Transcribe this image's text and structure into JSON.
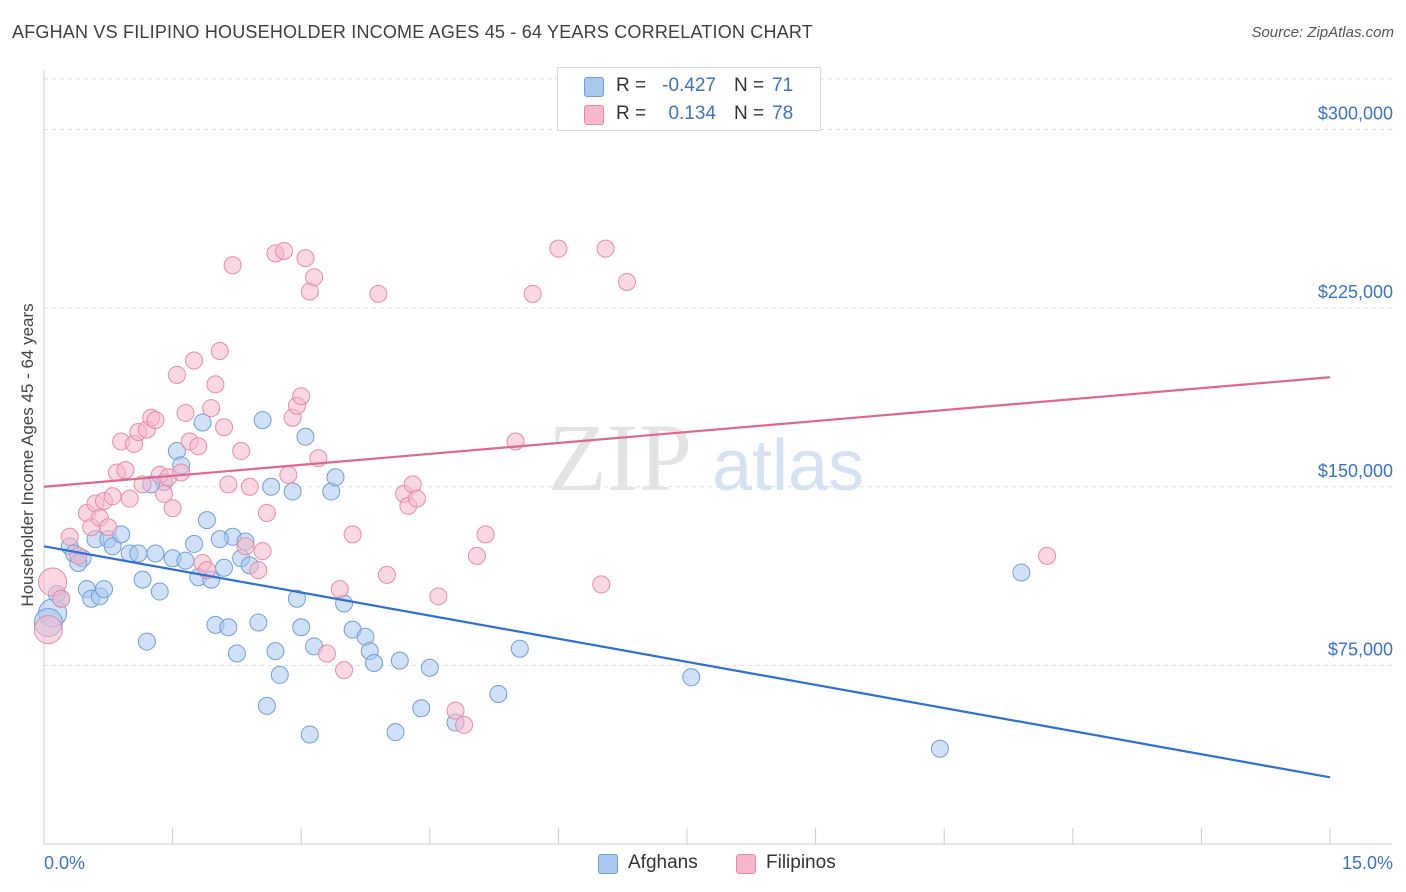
{
  "title": "AFGHAN VS FILIPINO HOUSEHOLDER INCOME AGES 45 - 64 YEARS CORRELATION CHART",
  "source": "Source: ZipAtlas.com",
  "watermark": {
    "zip": "ZIP",
    "atlas": "atlas"
  },
  "legend": {
    "rows": [
      {
        "r_label": "R =",
        "r_value": "-0.427",
        "n_label": "N =",
        "n_value": "71",
        "color": "#a9c8f0"
      },
      {
        "r_label": "R =",
        "r_value": "0.134",
        "n_label": "N =",
        "n_value": "78",
        "color": "#f6b8ca"
      }
    ]
  },
  "bottom_legend": [
    {
      "label": "Afghans",
      "color": "#a9c8f0"
    },
    {
      "label": "Filipinos",
      "color": "#f6b8ca"
    }
  ],
  "chart_data": {
    "type": "scatter",
    "title": "AFGHAN VS FILIPINO HOUSEHOLDER INCOME AGES 45 - 64 YEARS CORRELATION CHART",
    "xlabel": "",
    "ylabel": "Householder Income Ages 45 - 64 years",
    "xlim": [
      0,
      15
    ],
    "ylim": [
      0,
      325000
    ],
    "x_tick_labels": [
      "0.0%",
      "15.0%"
    ],
    "y_ticks": [
      75000,
      150000,
      225000,
      300000
    ],
    "y_tick_labels": [
      "$75,000",
      "$150,000",
      "$225,000",
      "$300,000"
    ],
    "grid": "horizontal dashed",
    "legend_position": "top-center",
    "series": [
      {
        "name": "Afghans",
        "color": "#a9c8f0",
        "stroke": "#6f9fd8",
        "trend": {
          "x": [
            0,
            15
          ],
          "y": [
            125000,
            28000
          ],
          "color": "#2e6fd2"
        },
        "points": [
          [
            0.1,
            97000
          ],
          [
            0.15,
            105000
          ],
          [
            0.3,
            125000
          ],
          [
            0.35,
            122000
          ],
          [
            0.45,
            120000
          ],
          [
            0.5,
            107000
          ],
          [
            0.55,
            103000
          ],
          [
            0.6,
            128000
          ],
          [
            0.65,
            104000
          ],
          [
            0.7,
            107000
          ],
          [
            0.75,
            128000
          ],
          [
            0.8,
            125000
          ],
          [
            0.9,
            130000
          ],
          [
            1.0,
            122000
          ],
          [
            1.1,
            122000
          ],
          [
            1.15,
            111000
          ],
          [
            1.2,
            85000
          ],
          [
            1.3,
            122000
          ],
          [
            1.35,
            106000
          ],
          [
            1.4,
            152000
          ],
          [
            1.5,
            120000
          ],
          [
            1.55,
            165000
          ],
          [
            1.6,
            159000
          ],
          [
            1.65,
            119000
          ],
          [
            1.75,
            126000
          ],
          [
            1.8,
            112000
          ],
          [
            1.85,
            177000
          ],
          [
            1.9,
            136000
          ],
          [
            1.95,
            111000
          ],
          [
            2.0,
            92000
          ],
          [
            2.1,
            116000
          ],
          [
            2.15,
            91000
          ],
          [
            2.2,
            129000
          ],
          [
            2.25,
            80000
          ],
          [
            2.3,
            120000
          ],
          [
            2.35,
            127000
          ],
          [
            2.4,
            117000
          ],
          [
            2.5,
            93000
          ],
          [
            2.55,
            178000
          ],
          [
            2.6,
            58000
          ],
          [
            2.65,
            150000
          ],
          [
            2.7,
            81000
          ],
          [
            2.75,
            71000
          ],
          [
            2.9,
            148000
          ],
          [
            2.95,
            103000
          ],
          [
            3.0,
            91000
          ],
          [
            3.05,
            171000
          ],
          [
            3.1,
            46000
          ],
          [
            3.15,
            83000
          ],
          [
            3.35,
            148000
          ],
          [
            3.4,
            154000
          ],
          [
            3.5,
            101000
          ],
          [
            3.6,
            90000
          ],
          [
            3.75,
            87000
          ],
          [
            3.8,
            81000
          ],
          [
            3.85,
            76000
          ],
          [
            4.1,
            47000
          ],
          [
            4.15,
            77000
          ],
          [
            4.4,
            57000
          ],
          [
            4.5,
            74000
          ],
          [
            4.8,
            51000
          ],
          [
            5.3,
            63000
          ],
          [
            5.55,
            82000
          ],
          [
            7.55,
            70000
          ],
          [
            10.45,
            40000
          ],
          [
            11.4,
            114000
          ],
          [
            0.05,
            93000
          ],
          [
            0.2,
            103000
          ],
          [
            0.4,
            118000
          ],
          [
            1.25,
            151000
          ],
          [
            2.05,
            128000
          ]
        ]
      },
      {
        "name": "Filipinos",
        "color": "#f6b8ca",
        "stroke": "#e88aa6",
        "trend": {
          "x": [
            0,
            15
          ],
          "y": [
            150000,
            196000
          ],
          "color": "#e06690"
        },
        "points": [
          [
            0.05,
            90000
          ],
          [
            0.1,
            110000
          ],
          [
            0.2,
            103000
          ],
          [
            0.3,
            129000
          ],
          [
            0.4,
            121000
          ],
          [
            0.5,
            139000
          ],
          [
            0.55,
            133000
          ],
          [
            0.6,
            143000
          ],
          [
            0.65,
            137000
          ],
          [
            0.7,
            144000
          ],
          [
            0.75,
            133000
          ],
          [
            0.8,
            146000
          ],
          [
            0.85,
            156000
          ],
          [
            0.9,
            169000
          ],
          [
            0.95,
            157000
          ],
          [
            1.0,
            145000
          ],
          [
            1.05,
            168000
          ],
          [
            1.1,
            173000
          ],
          [
            1.15,
            151000
          ],
          [
            1.2,
            174000
          ],
          [
            1.25,
            179000
          ],
          [
            1.3,
            178000
          ],
          [
            1.35,
            155000
          ],
          [
            1.4,
            147000
          ],
          [
            1.45,
            154000
          ],
          [
            1.5,
            141000
          ],
          [
            1.55,
            197000
          ],
          [
            1.6,
            156000
          ],
          [
            1.65,
            181000
          ],
          [
            1.7,
            169000
          ],
          [
            1.75,
            203000
          ],
          [
            1.8,
            167000
          ],
          [
            1.85,
            118000
          ],
          [
            1.9,
            115000
          ],
          [
            1.95,
            183000
          ],
          [
            2.0,
            193000
          ],
          [
            2.05,
            207000
          ],
          [
            2.1,
            175000
          ],
          [
            2.15,
            151000
          ],
          [
            2.2,
            243000
          ],
          [
            2.3,
            165000
          ],
          [
            2.35,
            125000
          ],
          [
            2.4,
            150000
          ],
          [
            2.5,
            115000
          ],
          [
            2.55,
            123000
          ],
          [
            2.6,
            139000
          ],
          [
            2.7,
            248000
          ],
          [
            2.8,
            249000
          ],
          [
            2.85,
            155000
          ],
          [
            2.9,
            179000
          ],
          [
            2.95,
            184000
          ],
          [
            3.0,
            188000
          ],
          [
            3.05,
            246000
          ],
          [
            3.1,
            232000
          ],
          [
            3.15,
            238000
          ],
          [
            3.2,
            162000
          ],
          [
            3.3,
            80000
          ],
          [
            3.45,
            107000
          ],
          [
            3.5,
            73000
          ],
          [
            3.6,
            130000
          ],
          [
            3.9,
            231000
          ],
          [
            4.0,
            113000
          ],
          [
            4.2,
            147000
          ],
          [
            4.25,
            142000
          ],
          [
            4.3,
            151000
          ],
          [
            4.35,
            145000
          ],
          [
            4.6,
            104000
          ],
          [
            4.8,
            56000
          ],
          [
            4.9,
            50000
          ],
          [
            5.05,
            121000
          ],
          [
            5.15,
            130000
          ],
          [
            5.5,
            169000
          ],
          [
            5.7,
            231000
          ],
          [
            6.0,
            250000
          ],
          [
            6.5,
            109000
          ],
          [
            6.55,
            250000
          ],
          [
            6.8,
            236000
          ],
          [
            11.7,
            121000
          ]
        ]
      }
    ]
  }
}
